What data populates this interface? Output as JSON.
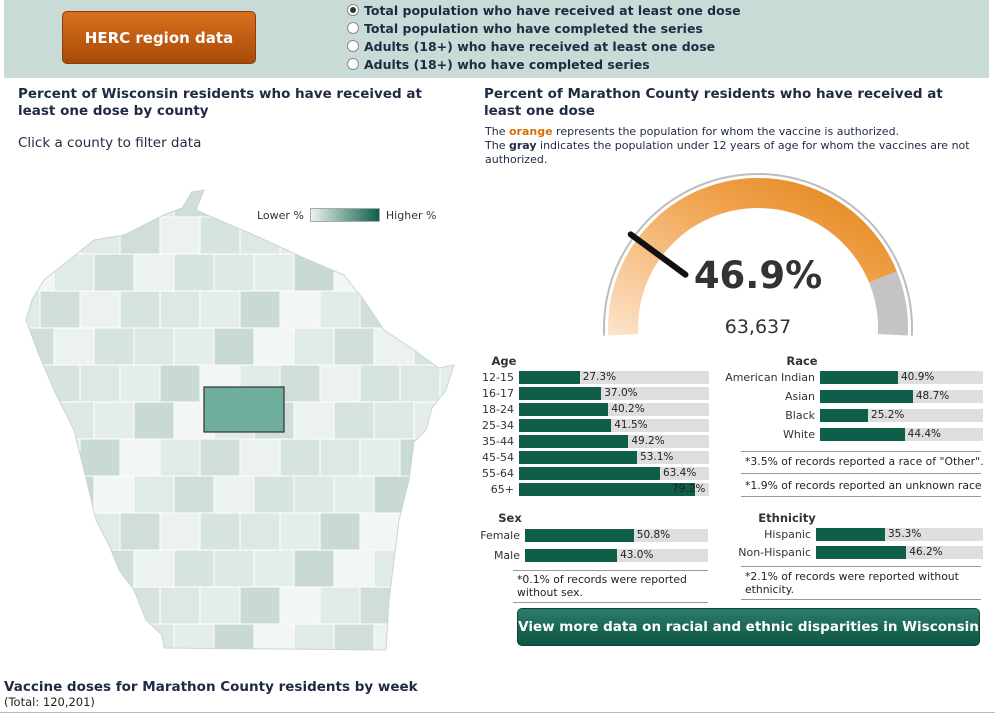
{
  "header": {
    "herc_button": "HERC region data",
    "options": [
      {
        "label": "Total population who have received at least one dose",
        "selected": true
      },
      {
        "label": "Total population who have completed the series",
        "selected": false
      },
      {
        "label": "Adults (18+) who have received at least one dose",
        "selected": false
      },
      {
        "label": "Adults (18+) who have completed series",
        "selected": false
      }
    ]
  },
  "left": {
    "title": "Percent of Wisconsin residents who have received at least one dose by county",
    "subtitle": "Click a county to filter data",
    "legend_low": "Lower %",
    "legend_high": "Higher %",
    "selected_county_color": "#6fae9d"
  },
  "right": {
    "title": "Percent of Marathon County residents who have received at least one dose",
    "note_1a": "The ",
    "note_1b": "orange",
    "note_1c": " represents the population for whom the vaccine is authorized.",
    "note_2a": "The ",
    "note_2b": "gray",
    "note_2c": " indicates the population under 12 years of age for whom the vaccines are not authorized.",
    "gauge_percent": "46.9%",
    "gauge_value": 46.9,
    "gauge_count": "63,637",
    "colors": {
      "orange": "#e88a1a",
      "gray": "#c4c4c4",
      "bar": "#0e5e4a",
      "track": "#dedede"
    }
  },
  "age": {
    "title": "Age",
    "rows": [
      {
        "label": "12-15",
        "value": 27.3,
        "text": "27.3%"
      },
      {
        "label": "16-17",
        "value": 37.0,
        "text": "37.0%"
      },
      {
        "label": "18-24",
        "value": 40.2,
        "text": "40.2%"
      },
      {
        "label": "25-34",
        "value": 41.5,
        "text": "41.5%"
      },
      {
        "label": "35-44",
        "value": 49.2,
        "text": "49.2%"
      },
      {
        "label": "45-54",
        "value": 53.1,
        "text": "53.1%"
      },
      {
        "label": "55-64",
        "value": 63.4,
        "text": "63.4%"
      },
      {
        "label": "65+",
        "value": 79.2,
        "text": "79.2%"
      }
    ]
  },
  "race": {
    "title": "Race",
    "rows": [
      {
        "label": "American Indian",
        "value": 40.9,
        "text": "40.9%"
      },
      {
        "label": "Asian",
        "value": 48.7,
        "text": "48.7%"
      },
      {
        "label": "Black",
        "value": 25.2,
        "text": "25.2%"
      },
      {
        "label": "White",
        "value": 44.4,
        "text": "44.4%"
      }
    ],
    "foot1": "*3.5% of records reported a race of \"Other\".",
    "foot2": "*1.9% of records reported an unknown race"
  },
  "sex": {
    "title": "Sex",
    "rows": [
      {
        "label": "Female",
        "value": 50.8,
        "text": "50.8%"
      },
      {
        "label": "Male",
        "value": 43.0,
        "text": "43.0%"
      }
    ],
    "foot": "*0.1% of records were reported without sex."
  },
  "ethnicity": {
    "title": "Ethnicity",
    "rows": [
      {
        "label": "Hispanic",
        "value": 35.3,
        "text": "35.3%"
      },
      {
        "label": "Non-Hispanic",
        "value": 46.2,
        "text": "46.2%"
      }
    ],
    "foot": "*2.1% of records were reported without ethnicity."
  },
  "cta": "View more data on racial and ethnic disparities in Wisconsin",
  "bottom": {
    "title": "Vaccine doses for Marathon County residents by week",
    "subtitle": "(Total: 120,201)"
  }
}
